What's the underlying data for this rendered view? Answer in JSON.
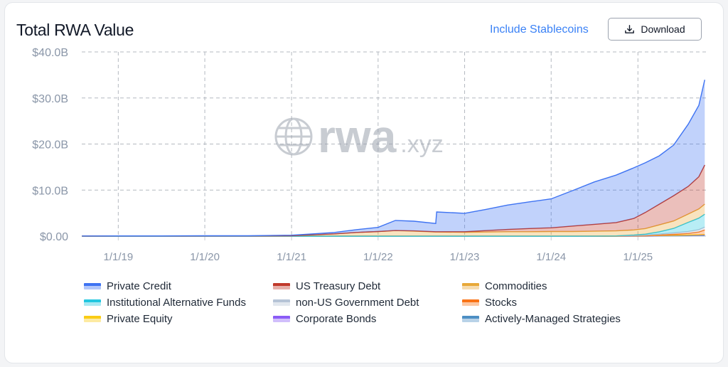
{
  "header": {
    "title": "Total RWA Value",
    "stablecoins_link": "Include Stablecoins",
    "download_label": "Download"
  },
  "watermark": {
    "word": "rwa",
    "tld": ".xyz"
  },
  "chart_data": {
    "type": "area",
    "stacked": true,
    "title": "Total RWA Value",
    "ylim": [
      0,
      40
    ],
    "y_unit": "B",
    "y_ticks": [
      "$0.00",
      "$10.0B",
      "$20.0B",
      "$30.0B",
      "$40.0B"
    ],
    "x_ticks": [
      "1/1/19",
      "1/1/20",
      "1/1/21",
      "1/1/22",
      "1/1/23",
      "1/1/24",
      "1/1/25"
    ],
    "xlim": [
      "2018-07-31",
      "2025-10-15"
    ],
    "grid": true,
    "legend_position": "bottom",
    "x": [
      "2018-08-01",
      "2019-01-01",
      "2019-07-01",
      "2020-01-01",
      "2020-07-01",
      "2021-01-01",
      "2021-04-01",
      "2021-07-01",
      "2021-10-01",
      "2022-01-01",
      "2022-03-15",
      "2022-06-01",
      "2022-09-01",
      "2022-09-05",
      "2023-01-01",
      "2023-04-01",
      "2023-07-01",
      "2023-10-01",
      "2024-01-01",
      "2024-04-01",
      "2024-07-01",
      "2024-10-01",
      "2024-12-15",
      "2025-02-01",
      "2025-04-01",
      "2025-06-01",
      "2025-08-01",
      "2025-09-15",
      "2025-10-10"
    ],
    "series": [
      {
        "name": "Actively-Managed Strategies",
        "color": "#4d8fc4",
        "values": [
          0,
          0,
          0,
          0,
          0,
          0,
          0,
          0,
          0,
          0,
          0,
          0,
          0,
          0,
          0,
          0,
          0,
          0,
          0,
          0,
          0,
          0,
          0,
          0,
          0.05,
          0.08,
          0.1,
          0.12,
          0.15
        ]
      },
      {
        "name": "Corporate Bonds",
        "color": "#8b5cf6",
        "values": [
          0,
          0,
          0,
          0,
          0,
          0,
          0,
          0,
          0,
          0,
          0,
          0,
          0,
          0,
          0,
          0,
          0,
          0,
          0,
          0,
          0,
          0,
          0.02,
          0.03,
          0.05,
          0.06,
          0.08,
          0.1,
          0.1
        ]
      },
      {
        "name": "Private Equity",
        "color": "#facc15",
        "values": [
          0,
          0,
          0,
          0,
          0,
          0,
          0,
          0,
          0,
          0,
          0,
          0,
          0,
          0,
          0,
          0,
          0,
          0,
          0,
          0,
          0,
          0,
          0.02,
          0.03,
          0.04,
          0.05,
          0.06,
          0.08,
          0.1
        ]
      },
      {
        "name": "Stocks",
        "color": "#f97316",
        "values": [
          0,
          0,
          0,
          0,
          0,
          0,
          0,
          0,
          0,
          0,
          0,
          0,
          0,
          0,
          0,
          0,
          0,
          0,
          0,
          0,
          0,
          0,
          0,
          0.02,
          0.1,
          0.2,
          0.35,
          0.6,
          1.0
        ]
      },
      {
        "name": "non-US Government Debt",
        "color": "#b6c4d6",
        "values": [
          0,
          0,
          0,
          0,
          0,
          0,
          0,
          0,
          0,
          0,
          0,
          0,
          0,
          0,
          0,
          0,
          0,
          0,
          0,
          0,
          0.02,
          0.05,
          0.1,
          0.15,
          0.2,
          0.3,
          0.4,
          0.5,
          0.6
        ]
      },
      {
        "name": "Institutional Alternative Funds",
        "color": "#22c7e0",
        "values": [
          0,
          0,
          0,
          0,
          0,
          0,
          0,
          0,
          0,
          0,
          0,
          0,
          0,
          0,
          0,
          0,
          0,
          0,
          0,
          0,
          0,
          0,
          0.1,
          0.2,
          0.5,
          1.0,
          2.0,
          2.5,
          2.8
        ]
      },
      {
        "name": "Commodities",
        "color": "#e8a838",
        "values": [
          0.02,
          0.03,
          0.03,
          0.04,
          0.05,
          0.1,
          0.3,
          0.5,
          0.8,
          1.0,
          1.2,
          1.1,
          0.9,
          0.9,
          0.85,
          0.9,
          0.95,
          0.95,
          1.0,
          1.0,
          1.05,
          1.1,
          1.1,
          1.2,
          1.5,
          1.6,
          1.8,
          2.0,
          2.2
        ]
      },
      {
        "name": "US Treasury Debt",
        "color": "#c0392b",
        "values": [
          0,
          0,
          0,
          0,
          0,
          0,
          0,
          0,
          0,
          0,
          0.02,
          0.05,
          0.05,
          0.05,
          0.1,
          0.3,
          0.5,
          0.7,
          0.8,
          1.2,
          1.5,
          1.8,
          2.5,
          3.5,
          4.5,
          5.5,
          6.0,
          7.0,
          8.5
        ]
      },
      {
        "name": "Private Credit",
        "color": "#3e73f2",
        "values": [
          0.01,
          0.02,
          0.02,
          0.03,
          0.03,
          0.1,
          0.2,
          0.3,
          0.6,
          0.9,
          2.2,
          2.1,
          1.8,
          4.3,
          4.0,
          4.6,
          5.3,
          5.8,
          6.3,
          7.7,
          9.2,
          10.3,
          11.0,
          10.8,
          10.5,
          11.0,
          13.5,
          15.5,
          18.5
        ]
      }
    ]
  },
  "legend": [
    {
      "label": "Private Credit",
      "color": "#3e73f2"
    },
    {
      "label": "US Treasury Debt",
      "color": "#c0392b"
    },
    {
      "label": "Commodities",
      "color": "#e8a838"
    },
    {
      "label": "Institutional Alternative Funds",
      "color": "#22c7e0"
    },
    {
      "label": "non-US Government Debt",
      "color": "#b6c4d6"
    },
    {
      "label": "Stocks",
      "color": "#f97316"
    },
    {
      "label": "Private Equity",
      "color": "#facc15"
    },
    {
      "label": "Corporate Bonds",
      "color": "#8b5cf6"
    },
    {
      "label": "Actively-Managed Strategies",
      "color": "#4d8fc4"
    }
  ]
}
